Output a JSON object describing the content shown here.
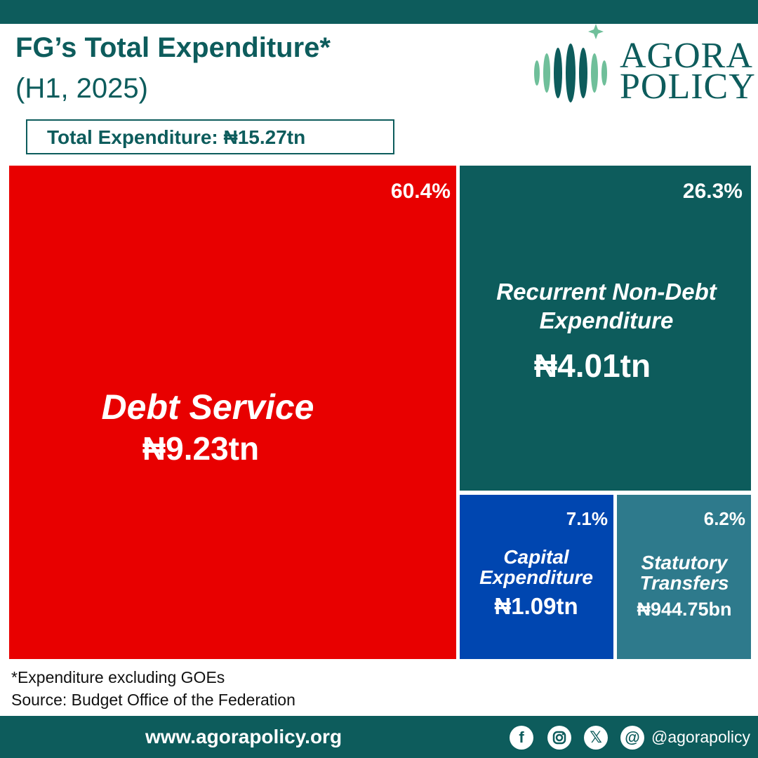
{
  "header": {
    "title": "FG’s Total Expenditure*",
    "subtitle": "(H1, 2025)",
    "total_label": "Total Expenditure: ₦15.27tn"
  },
  "logo": {
    "line1": "AGORA",
    "line2": "POLICY"
  },
  "colors": {
    "brand": "#0d5c5c",
    "debt_service": "#e80000",
    "recurrent": "#0d5c5c",
    "capital": "#0046b0",
    "statutory": "#2e7a8c"
  },
  "chart_data": {
    "type": "treemap",
    "title": "FG’s Total Expenditure*",
    "subtitle": "(H1, 2025)",
    "total": "₦15.27tn",
    "items": [
      {
        "name": "Debt Service",
        "value_label": "₦9.23tn",
        "value_tn": 9.23,
        "percent": 60.4,
        "percent_label": "60.4%",
        "color": "#e80000"
      },
      {
        "name": "Recurrent Non-Debt Expenditure",
        "name_lines": [
          "Recurrent Non-Debt",
          "Expenditure"
        ],
        "value_label": "₦4.01tn",
        "value_tn": 4.01,
        "percent": 26.3,
        "percent_label": "26.3%",
        "color": "#0d5c5c"
      },
      {
        "name": "Capital Expenditure",
        "name_lines": [
          "Capital",
          "Expenditure"
        ],
        "value_label": "₦1.09tn",
        "value_tn": 1.09,
        "percent": 7.1,
        "percent_label": "7.1%",
        "color": "#0046b0"
      },
      {
        "name": "Statutory Transfers",
        "name_lines": [
          "Statutory",
          "Transfers"
        ],
        "value_label": "₦944.75bn",
        "value_tn": 0.94475,
        "percent": 6.2,
        "percent_label": "6.2%",
        "color": "#2e7a8c"
      }
    ]
  },
  "notes": {
    "footnote": "*Expenditure excluding GOEs",
    "source": " Source: Budget Office of the Federation"
  },
  "footer": {
    "url": "www.agorapolicy.org",
    "handle": "@agorapolicy",
    "social_icons": [
      "facebook-icon",
      "instagram-icon",
      "x-icon",
      "threads-icon"
    ]
  }
}
